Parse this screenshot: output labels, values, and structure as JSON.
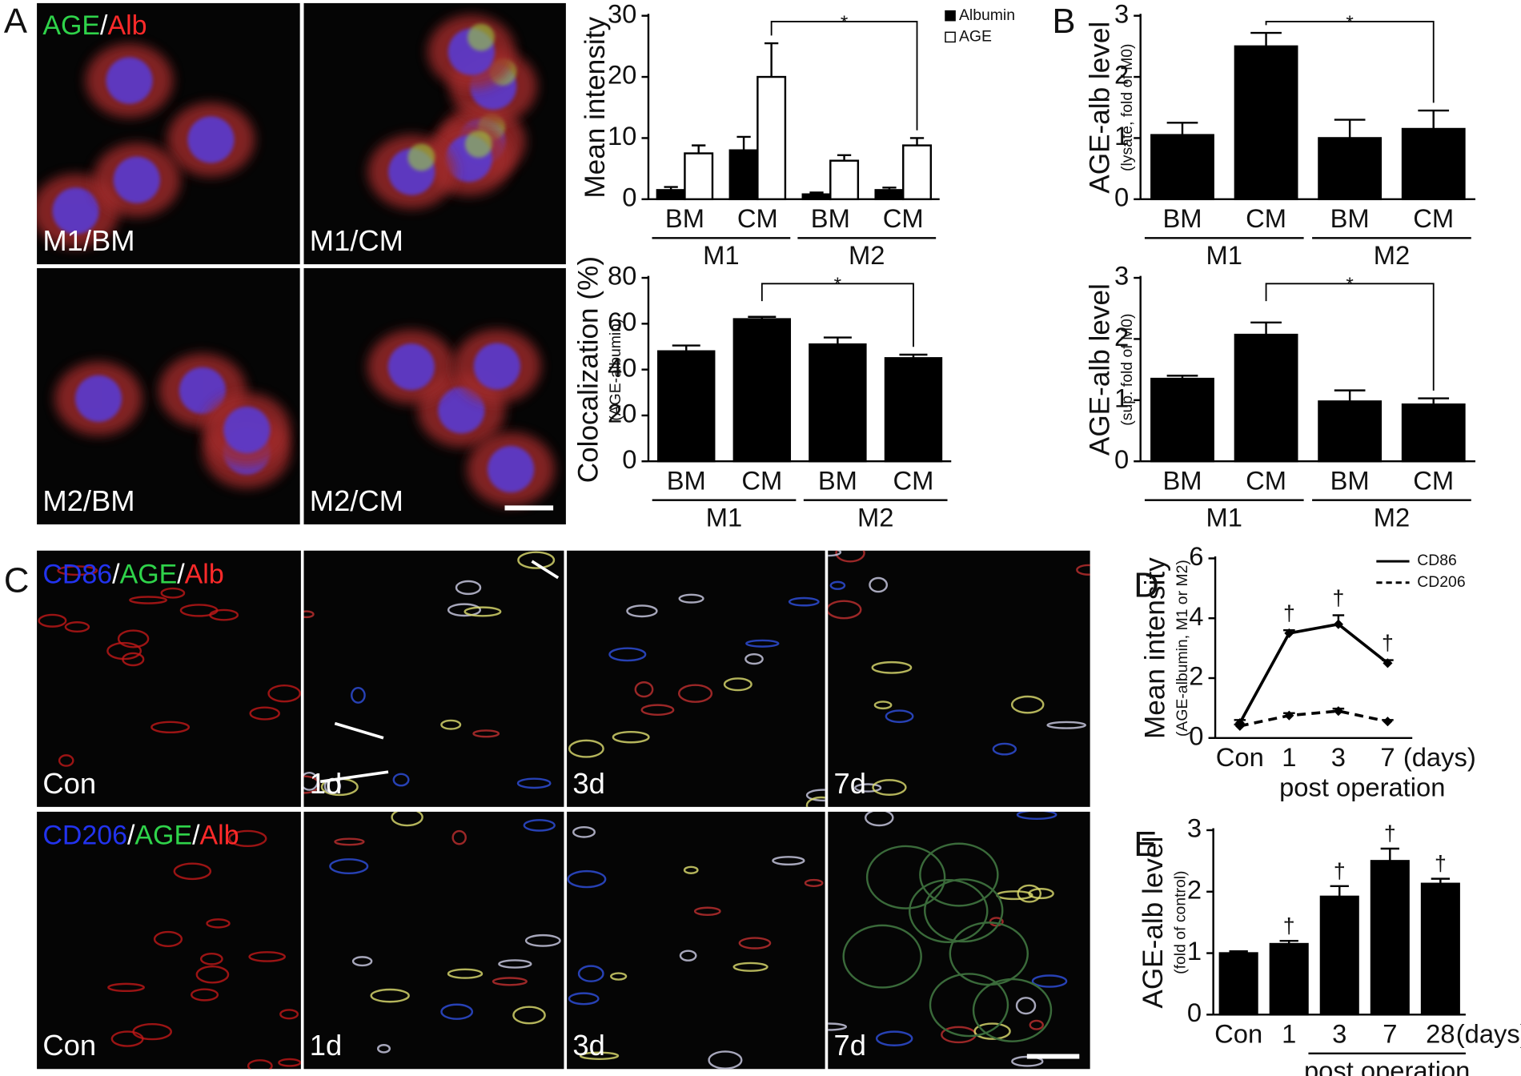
{
  "panel_letters": [
    "A",
    "B",
    "C",
    "D",
    "E"
  ],
  "image_titles": [
    {
      "parts": [
        {
          "text": "AGE",
          "color": "#2fd34a"
        },
        {
          "text": "/",
          "color": "#ffffff"
        },
        {
          "text": "Alb",
          "color": "#ff2a2a"
        }
      ]
    },
    {
      "parts": [
        {
          "text": "CD86",
          "color": "#2233ee"
        },
        {
          "text": "/",
          "color": "#ffffff"
        },
        {
          "text": "AGE",
          "color": "#2fd34a"
        },
        {
          "text": "/",
          "color": "#ffffff"
        },
        {
          "text": "Alb",
          "color": "#ff2a2a"
        }
      ]
    },
    {
      "parts": [
        {
          "text": "CD206",
          "color": "#2233ee"
        },
        {
          "text": "/",
          "color": "#ffffff"
        },
        {
          "text": "AGE",
          "color": "#2fd34a"
        },
        {
          "text": "/",
          "color": "#ffffff"
        },
        {
          "text": "Alb",
          "color": "#ff2a2a"
        }
      ]
    }
  ],
  "images": [
    {
      "label": "M1/BM"
    },
    {
      "label": "M1/CM"
    },
    {
      "label": "M2/BM"
    },
    {
      "label": "M2/CM"
    },
    {
      "label": "Con"
    },
    {
      "label": "1d"
    },
    {
      "label": "3d"
    },
    {
      "label": "7d"
    },
    {
      "label": "Con"
    },
    {
      "label": "1d"
    },
    {
      "label": "3d"
    },
    {
      "label": "7d"
    }
  ],
  "chart_data": [
    {
      "type": "bar",
      "ylabel": "Mean intensity",
      "categories": [
        "BM",
        "CM",
        "BM",
        "CM"
      ],
      "groups": [
        "M1",
        "M2"
      ],
      "series": [
        {
          "name": "Albumin",
          "color": "#000000",
          "values": [
            1.5,
            8,
            0.8,
            1.5
          ],
          "errors": [
            0.5,
            2.2,
            0.3,
            0.4
          ]
        },
        {
          "name": "AGE",
          "color": "#ffffff",
          "values": [
            7.5,
            20,
            6.3,
            8.8
          ],
          "errors": [
            1.3,
            5.5,
            0.9,
            1.2
          ]
        }
      ],
      "ylim": [
        0,
        30
      ],
      "yticks": [
        0,
        10,
        20,
        30
      ],
      "legend": "upper right",
      "brackets": [
        {
          "label": "*",
          "between": [
            1,
            3
          ]
        }
      ]
    },
    {
      "type": "bar",
      "ylabel": "Colocalization (%)",
      "ylabel_sub": "(AGE-albumin)",
      "categories": [
        "BM",
        "CM",
        "BM",
        "CM"
      ],
      "groups": [
        "M1",
        "M2"
      ],
      "values": [
        48,
        62,
        51,
        45
      ],
      "errors": [
        2.5,
        1,
        3,
        1.5
      ],
      "color": "#000000",
      "ylim": [
        0,
        80
      ],
      "yticks": [
        0,
        20,
        40,
        60,
        80
      ],
      "brackets": [
        {
          "label": "*",
          "between": [
            1,
            3
          ]
        }
      ]
    },
    {
      "type": "bar",
      "ylabel": "AGE-alb level",
      "ylabel_sub": "(lysate, fold of M0)",
      "categories": [
        "BM",
        "CM",
        "BM",
        "CM"
      ],
      "groups": [
        "M1",
        "M2"
      ],
      "values": [
        1.05,
        2.5,
        1.0,
        1.15
      ],
      "errors": [
        0.2,
        0.22,
        0.3,
        0.3
      ],
      "color": "#000000",
      "ylim": [
        0,
        3
      ],
      "yticks": [
        0,
        1,
        2,
        3
      ],
      "brackets": [
        {
          "label": "*",
          "between": [
            1,
            3
          ]
        }
      ]
    },
    {
      "type": "bar",
      "ylabel": "AGE-alb level",
      "ylabel_sub": "(sup. fold of M0)",
      "categories": [
        "BM",
        "CM",
        "BM",
        "CM"
      ],
      "groups": [
        "M1",
        "M2"
      ],
      "values": [
        1.35,
        2.07,
        0.98,
        0.93
      ],
      "errors": [
        0.05,
        0.2,
        0.18,
        0.1
      ],
      "color": "#000000",
      "ylim": [
        0,
        3
      ],
      "yticks": [
        0,
        1,
        2,
        3
      ],
      "brackets": [
        {
          "label": "*",
          "between": [
            1,
            3
          ]
        }
      ]
    },
    {
      "type": "line",
      "ylabel": "Mean intensity",
      "ylabel_sub": "(AGE-albumin, M1 or M2)",
      "categories": [
        "Con",
        "1",
        "3",
        "7"
      ],
      "xunit": "(days)",
      "xlabel": "post operation",
      "series": [
        {
          "name": "CD86",
          "color": "#000000",
          "dashed": false,
          "values": [
            0.5,
            3.5,
            3.8,
            2.5
          ],
          "errors": [
            0.1,
            0.1,
            0.3,
            0.1
          ],
          "annotations": [
            null,
            "†",
            "†",
            "†"
          ]
        },
        {
          "name": "CD206",
          "color": "#000000",
          "dashed": true,
          "values": [
            0.4,
            0.75,
            0.9,
            0.55
          ],
          "errors": [
            0.05,
            0.08,
            0.08,
            0.05
          ]
        }
      ],
      "ylim": [
        0,
        6
      ],
      "yticks": [
        0,
        2,
        4,
        6
      ],
      "legend": "upper right"
    },
    {
      "type": "bar",
      "ylabel": "AGE-alb level",
      "ylabel_sub": "(fold of control)",
      "categories": [
        "Con",
        "1",
        "3",
        "7",
        "28"
      ],
      "xunit": "(days)",
      "xlabel": "post operation",
      "values": [
        1.0,
        1.15,
        1.92,
        2.5,
        2.13
      ],
      "errors": [
        0.03,
        0.05,
        0.17,
        0.2,
        0.08
      ],
      "color": "#000000",
      "annotations": [
        null,
        "†",
        "†",
        "†",
        "†"
      ],
      "ylim": [
        0,
        3
      ],
      "yticks": [
        0,
        1,
        2,
        3
      ]
    }
  ]
}
